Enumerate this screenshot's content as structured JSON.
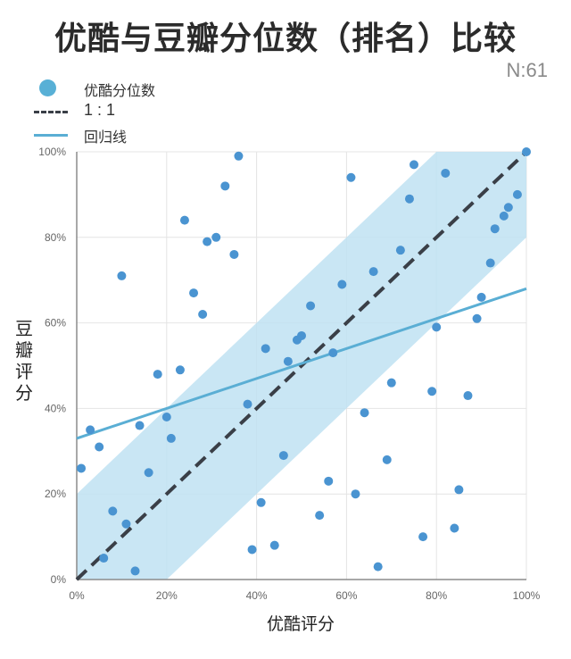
{
  "title": "优酷与豆瓣分位数（排名）比较",
  "sample_size": "N:61",
  "legend": {
    "points": "优酷分位数",
    "diagonal": "1 : 1",
    "regression": "回归线"
  },
  "colors": {
    "point": "#4a94d1",
    "band": "#bfe2f2",
    "regression": "#5aaed4",
    "diagonal": "#3a3f47",
    "grid": "#e4e4e4"
  },
  "chart_data": {
    "type": "scatter",
    "title": "优酷与豆瓣分位数（排名）比较",
    "xlabel": "优酷评分",
    "ylabel": "豆瓣评分",
    "xlim": [
      0,
      100
    ],
    "ylim": [
      0,
      100
    ],
    "x_ticks": [
      "0%",
      "20%",
      "40%",
      "60%",
      "80%",
      "100%"
    ],
    "y_ticks": [
      "0%",
      "20%",
      "40%",
      "60%",
      "80%",
      "100%"
    ],
    "grid": true,
    "legend_position": "top-left",
    "reference_line": {
      "name": "1 : 1",
      "from": [
        0,
        0
      ],
      "to": [
        100,
        100
      ]
    },
    "band": {
      "offset": 20,
      "description": "shaded band of ±20 around the 1:1 line"
    },
    "regression_line": {
      "name": "回归线",
      "from": [
        0,
        33
      ],
      "to": [
        100,
        68
      ]
    },
    "series": [
      {
        "name": "优酷分位数",
        "points": [
          [
            1,
            26
          ],
          [
            3,
            35
          ],
          [
            5,
            31
          ],
          [
            6,
            5
          ],
          [
            8,
            16
          ],
          [
            10,
            71
          ],
          [
            11,
            13
          ],
          [
            13,
            2
          ],
          [
            14,
            36
          ],
          [
            16,
            25
          ],
          [
            18,
            48
          ],
          [
            20,
            38
          ],
          [
            21,
            33
          ],
          [
            23,
            49
          ],
          [
            24,
            84
          ],
          [
            26,
            67
          ],
          [
            28,
            62
          ],
          [
            29,
            79
          ],
          [
            31,
            80
          ],
          [
            33,
            92
          ],
          [
            35,
            76
          ],
          [
            36,
            99
          ],
          [
            38,
            41
          ],
          [
            39,
            7
          ],
          [
            41,
            18
          ],
          [
            42,
            54
          ],
          [
            44,
            8
          ],
          [
            46,
            29
          ],
          [
            47,
            51
          ],
          [
            49,
            56
          ],
          [
            50,
            57
          ],
          [
            52,
            64
          ],
          [
            54,
            15
          ],
          [
            56,
            23
          ],
          [
            57,
            53
          ],
          [
            59,
            69
          ],
          [
            61,
            94
          ],
          [
            62,
            20
          ],
          [
            64,
            39
          ],
          [
            66,
            72
          ],
          [
            67,
            3
          ],
          [
            69,
            28
          ],
          [
            70,
            46
          ],
          [
            72,
            77
          ],
          [
            74,
            89
          ],
          [
            75,
            97
          ],
          [
            77,
            10
          ],
          [
            79,
            44
          ],
          [
            80,
            59
          ],
          [
            82,
            95
          ],
          [
            84,
            12
          ],
          [
            85,
            21
          ],
          [
            87,
            43
          ],
          [
            89,
            61
          ],
          [
            90,
            66
          ],
          [
            92,
            74
          ],
          [
            93,
            82
          ],
          [
            95,
            85
          ],
          [
            96,
            87
          ],
          [
            98,
            90
          ],
          [
            100,
            100
          ]
        ]
      }
    ]
  }
}
